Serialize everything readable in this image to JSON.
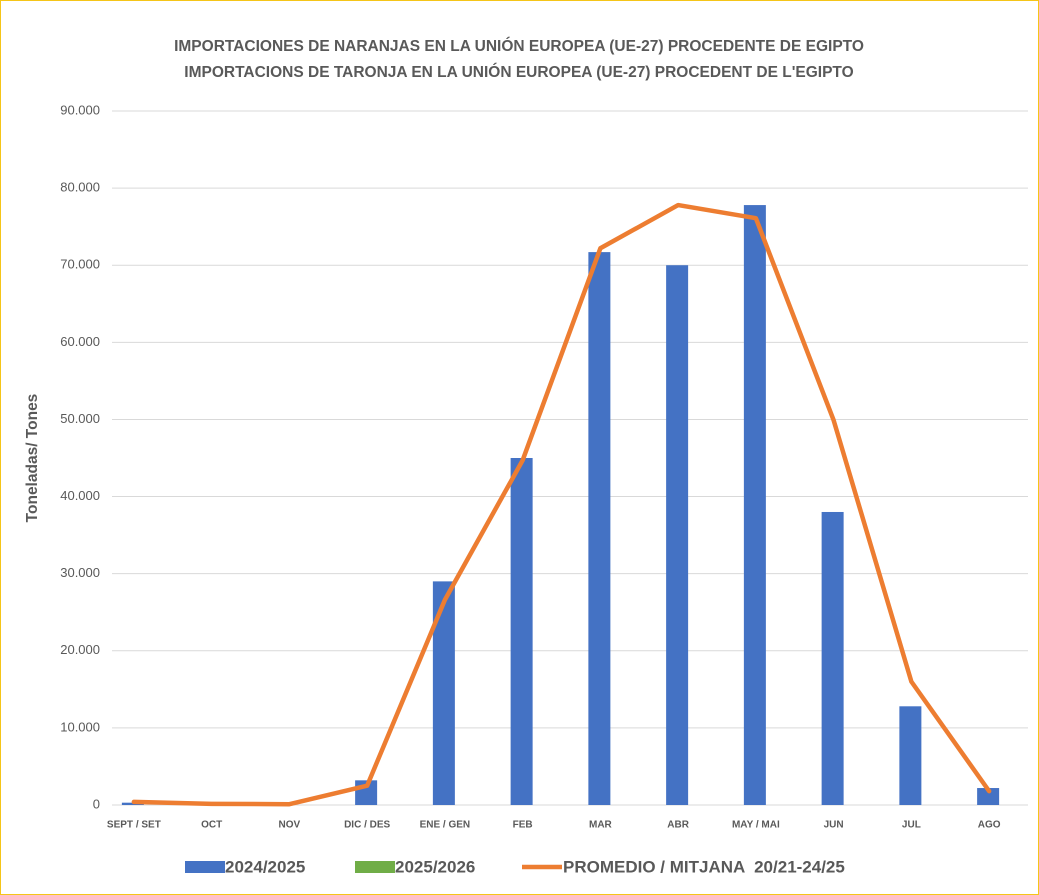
{
  "chart_data": {
    "type": "bar",
    "title": "IMPORTACIONES DE NARANJAS EN LA UNIÓN EUROPEA (UE-27) PROCEDENTE DE EGIPTO",
    "subtitle": "IMPORTACIONS DE TARONJA EN LA UNIÓN EUROPEA (UE-27) PROCEDENT DE L'EGIPTO",
    "y_label": "Toneladas/ Tones",
    "categories": [
      "SEPT / SET",
      "OCT",
      "NOV",
      "DIC / DES",
      "ENE / GEN",
      "FEB",
      "MAR",
      "ABR",
      "MAY / MAI",
      "JUN",
      "JUL",
      "AGO"
    ],
    "series": [
      {
        "name": "2024/2025",
        "color": "#4472c4",
        "type": "bar",
        "values": [
          300,
          0,
          0,
          3200,
          29000,
          45000,
          71700,
          70000,
          77800,
          38000,
          12800,
          2200
        ]
      },
      {
        "name": "2025/2026",
        "color": "#70ad47",
        "type": "bar",
        "values": [
          null,
          null,
          null,
          null,
          null,
          null,
          null,
          null,
          null,
          null,
          null,
          null
        ]
      },
      {
        "name": "PROMEDIO / MITJANA  20/21-24/25",
        "color": "#ed7d31",
        "type": "line",
        "values": [
          400,
          150,
          100,
          2500,
          26600,
          44700,
          72200,
          77800,
          76100,
          49900,
          16000,
          1800
        ]
      }
    ],
    "ylim": [
      0,
      90000
    ],
    "yticks": [
      {
        "value": 0,
        "label": "0"
      },
      {
        "value": 10000,
        "label": "10.000"
      },
      {
        "value": 20000,
        "label": "20.000"
      },
      {
        "value": 30000,
        "label": "30.000"
      },
      {
        "value": 40000,
        "label": "40.000"
      },
      {
        "value": 50000,
        "label": "50.000"
      },
      {
        "value": 60000,
        "label": "60.000"
      },
      {
        "value": 70000,
        "label": "70.000"
      },
      {
        "value": 80000,
        "label": "80.000"
      },
      {
        "value": 90000,
        "label": "90.000"
      }
    ],
    "grid": true
  }
}
